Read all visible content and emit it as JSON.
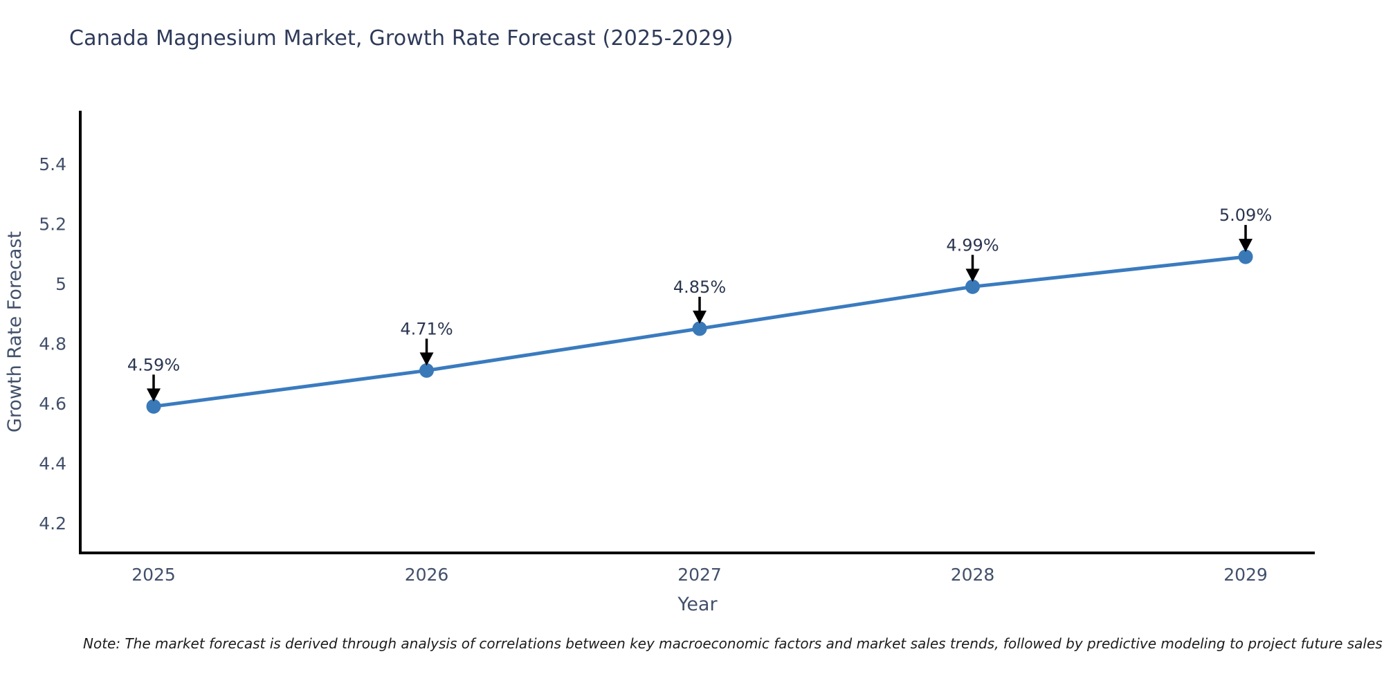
{
  "chart_data": {
    "type": "line",
    "title": "Canada Magnesium Market, Growth Rate Forecast (2025-2029)",
    "xlabel": "Year",
    "ylabel": "Growth Rate Forecast",
    "categories": [
      "2025",
      "2026",
      "2027",
      "2028",
      "2029"
    ],
    "x": [
      2025,
      2026,
      2027,
      2028,
      2029
    ],
    "values": [
      4.59,
      4.71,
      4.85,
      4.99,
      5.09
    ],
    "point_labels": [
      "4.59%",
      "4.71%",
      "4.85%",
      "4.99%",
      "5.09%"
    ],
    "yticks": [
      4.2,
      4.4,
      4.6,
      4.8,
      5,
      5.2,
      5.4
    ],
    "ytick_labels": [
      "4.2",
      "4.4",
      "4.6",
      "4.8",
      "5",
      "5.2",
      "5.4"
    ],
    "ylim": [
      4.1,
      5.58
    ],
    "grid": false,
    "legend": "none",
    "line_color": "#3a7bbf",
    "marker_color": "#3a79b8",
    "axis_color": "#000000",
    "tick_color": "#42506b",
    "annotation_color": "#2a3550",
    "arrow_color": "#000000"
  },
  "note": {
    "text": "Note: The market forecast is derived through analysis of correlations between key macroeconomic factors and market sales trends, followed by predictive modeling to project future sales"
  }
}
